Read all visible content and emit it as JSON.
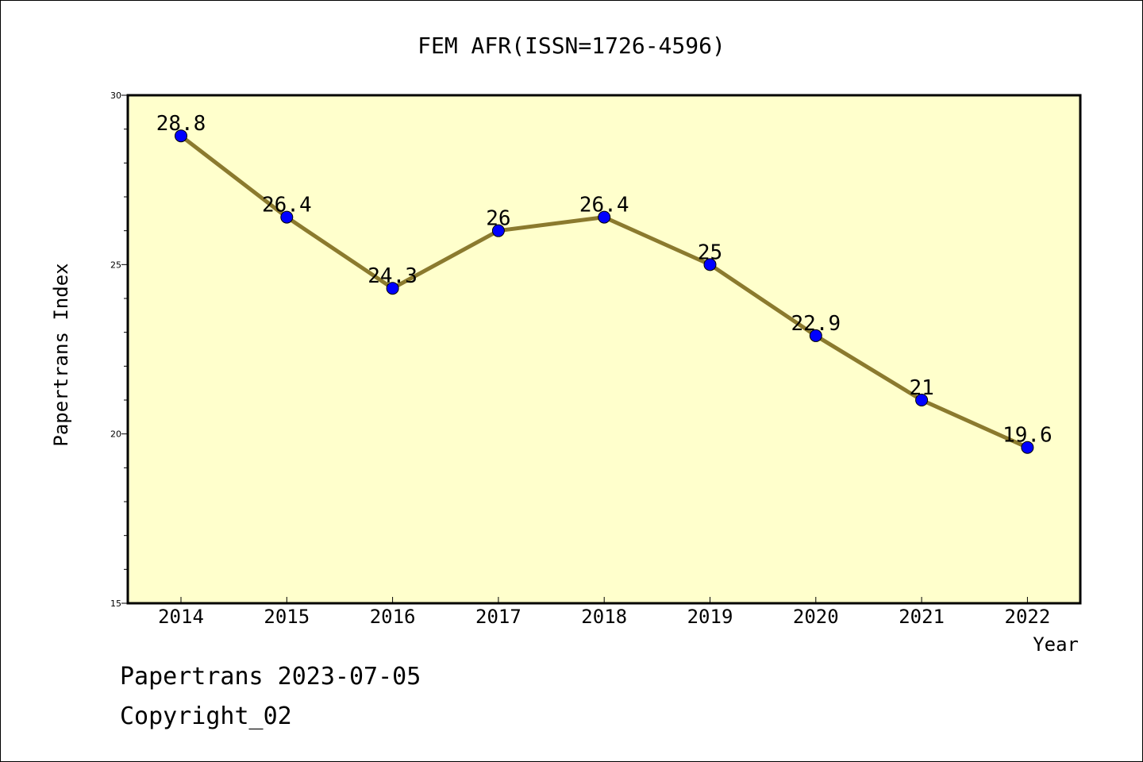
{
  "chart_data": {
    "type": "line",
    "title": "FEM AFR(ISSN=1726-4596)",
    "xlabel": "Year",
    "ylabel": "Papertrans Index",
    "categories": [
      "2014",
      "2015",
      "2016",
      "2017",
      "2018",
      "2019",
      "2020",
      "2021",
      "2022"
    ],
    "values": [
      28.8,
      26.4,
      24.3,
      26,
      26.4,
      25,
      22.9,
      21,
      19.6
    ],
    "data_labels": [
      "28.8",
      "26.4",
      "24.3",
      "26",
      "26.4",
      "25",
      "22.9",
      "21",
      "19.6"
    ],
    "ylim": [
      15,
      30
    ],
    "yticks": [
      15,
      20,
      25,
      30
    ],
    "grid": false,
    "colors": {
      "plot_background": "#ffffcc",
      "line": "#8b7a2e",
      "marker": "#0000ff"
    }
  },
  "footer": {
    "date_line": "Papertrans 2023-07-05",
    "copyright_line": "Copyright_02"
  }
}
